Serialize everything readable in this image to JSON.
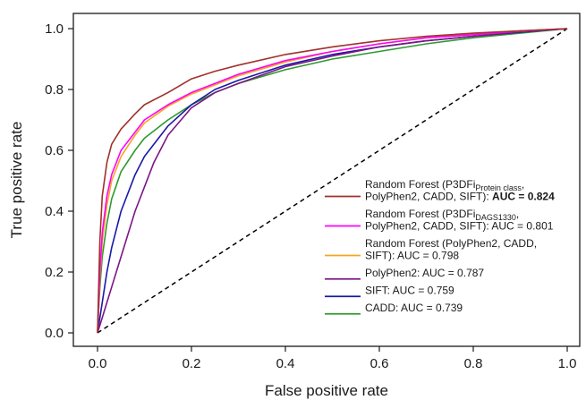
{
  "chart_data": {
    "type": "line",
    "xlabel": "False positive rate",
    "ylabel": "True positive rate",
    "xlim": [
      -0.03,
      1.0
    ],
    "ylim": [
      -0.03,
      1.05
    ],
    "xticks": [
      "0.0",
      "0.2",
      "0.4",
      "0.6",
      "0.8",
      "1.0"
    ],
    "yticks": [
      "0.0",
      "0.2",
      "0.4",
      "0.6",
      "0.8",
      "1.0"
    ],
    "legend_position": "lower-right",
    "diagonal": {
      "x": [
        0,
        1
      ],
      "y": [
        0,
        1
      ],
      "style": "dashed",
      "color": "#000000"
    },
    "series": [
      {
        "name": "Random Forest (P3DFi Protein class, PolyPhen2, CADD, SIFT): AUC = 0.824",
        "legend_lines": [
          {
            "parts": [
              {
                "text": "Random Forest (P3DFi"
              },
              {
                "text": "Protein class",
                "sub": true
              },
              {
                "text": ","
              }
            ]
          },
          {
            "parts": [
              {
                "text": "PolyPhen2, CADD, SIFT): "
              },
              {
                "text": "AUC = 0.824",
                "bold": true
              }
            ]
          }
        ],
        "color": "#a0302a",
        "x": [
          0,
          0.005,
          0.01,
          0.02,
          0.03,
          0.05,
          0.08,
          0.1,
          0.15,
          0.2,
          0.25,
          0.3,
          0.4,
          0.5,
          0.6,
          0.7,
          0.8,
          0.9,
          1.0
        ],
        "y": [
          0,
          0.3,
          0.45,
          0.56,
          0.62,
          0.67,
          0.72,
          0.75,
          0.79,
          0.835,
          0.86,
          0.88,
          0.915,
          0.94,
          0.96,
          0.975,
          0.985,
          0.993,
          1.0
        ]
      },
      {
        "name": "Random Forest (P3DFi DAGS1330, PolyPhen2, CADD, SIFT): AUC = 0.801",
        "legend_lines": [
          {
            "parts": [
              {
                "text": "Random Forest (P3DFi"
              },
              {
                "text": "DAGS1330",
                "sub": true
              },
              {
                "text": ","
              }
            ]
          },
          {
            "parts": [
              {
                "text": "PolyPhen2, CADD, SIFT): AUC = 0.801"
              }
            ]
          }
        ],
        "color": "#ff00ff",
        "x": [
          0,
          0.005,
          0.01,
          0.02,
          0.03,
          0.05,
          0.08,
          0.1,
          0.15,
          0.2,
          0.25,
          0.3,
          0.4,
          0.5,
          0.6,
          0.7,
          0.8,
          0.9,
          1.0
        ],
        "y": [
          0,
          0.2,
          0.33,
          0.45,
          0.52,
          0.6,
          0.66,
          0.7,
          0.75,
          0.79,
          0.82,
          0.85,
          0.895,
          0.925,
          0.95,
          0.97,
          0.98,
          0.992,
          1.0
        ]
      },
      {
        "name": "Random Forest (PolyPhen2, CADD, SIFT): AUC = 0.798",
        "legend_lines": [
          {
            "parts": [
              {
                "text": "Random Forest (PolyPhen2, CADD,"
              }
            ]
          },
          {
            "parts": [
              {
                "text": "SIFT): AUC = 0.798"
              }
            ]
          }
        ],
        "color": "#f5a623",
        "x": [
          0,
          0.005,
          0.01,
          0.02,
          0.03,
          0.05,
          0.08,
          0.1,
          0.15,
          0.2,
          0.25,
          0.3,
          0.4,
          0.5,
          0.6,
          0.7,
          0.8,
          0.9,
          1.0
        ],
        "y": [
          0,
          0.18,
          0.3,
          0.42,
          0.5,
          0.58,
          0.65,
          0.69,
          0.745,
          0.785,
          0.815,
          0.845,
          0.89,
          0.925,
          0.95,
          0.97,
          0.982,
          0.992,
          1.0
        ]
      },
      {
        "name": "PolyPhen2: AUC = 0.787",
        "legend_lines": [
          {
            "parts": [
              {
                "text": "PolyPhen2: AUC = 0.787"
              }
            ]
          }
        ],
        "color": "#7b1785",
        "x": [
          0,
          0.01,
          0.02,
          0.04,
          0.06,
          0.08,
          0.1,
          0.12,
          0.15,
          0.2,
          0.25,
          0.3,
          0.4,
          0.5,
          0.6,
          0.7,
          0.8,
          0.9,
          1.0
        ],
        "y": [
          0,
          0.05,
          0.1,
          0.2,
          0.3,
          0.4,
          0.48,
          0.56,
          0.65,
          0.74,
          0.79,
          0.82,
          0.875,
          0.91,
          0.94,
          0.96,
          0.975,
          0.99,
          1.0
        ]
      },
      {
        "name": "SIFT: AUC = 0.759",
        "legend_lines": [
          {
            "parts": [
              {
                "text": "SIFT: AUC = 0.759"
              }
            ]
          }
        ],
        "color": "#1a1aa6",
        "x": [
          0,
          0.01,
          0.02,
          0.03,
          0.05,
          0.08,
          0.1,
          0.15,
          0.2,
          0.25,
          0.3,
          0.4,
          0.5,
          0.6,
          0.7,
          0.8,
          0.9,
          1.0
        ],
        "y": [
          0,
          0.1,
          0.2,
          0.28,
          0.4,
          0.52,
          0.58,
          0.68,
          0.75,
          0.8,
          0.83,
          0.88,
          0.915,
          0.94,
          0.96,
          0.975,
          0.988,
          1.0
        ]
      },
      {
        "name": "CADD: AUC = 0.739",
        "legend_lines": [
          {
            "parts": [
              {
                "text": "CADD: AUC = 0.739"
              }
            ]
          }
        ],
        "color": "#2e9a2e",
        "x": [
          0,
          0.005,
          0.01,
          0.02,
          0.03,
          0.05,
          0.08,
          0.1,
          0.15,
          0.2,
          0.25,
          0.3,
          0.4,
          0.5,
          0.6,
          0.7,
          0.8,
          0.9,
          1.0
        ],
        "y": [
          0,
          0.15,
          0.25,
          0.36,
          0.44,
          0.53,
          0.6,
          0.64,
          0.7,
          0.75,
          0.79,
          0.82,
          0.865,
          0.9,
          0.925,
          0.95,
          0.97,
          0.985,
          1.0
        ]
      }
    ]
  }
}
